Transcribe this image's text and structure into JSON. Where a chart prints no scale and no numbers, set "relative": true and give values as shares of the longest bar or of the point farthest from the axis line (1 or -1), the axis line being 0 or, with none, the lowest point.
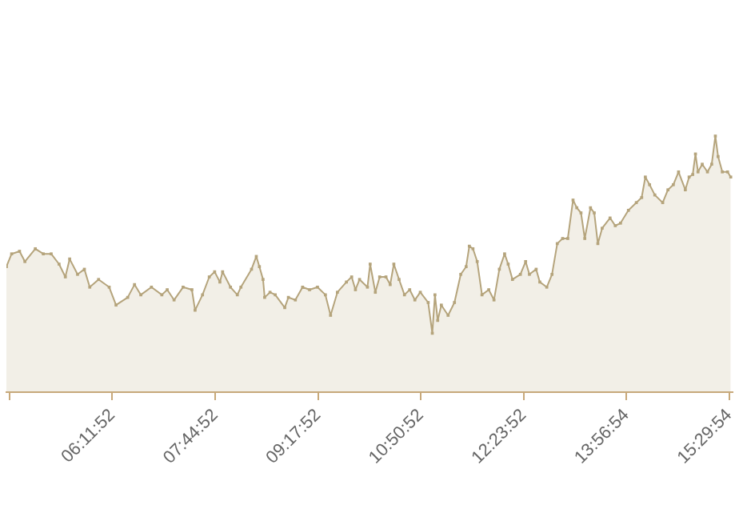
{
  "chart_data": {
    "type": "area",
    "relative": true,
    "color": "#b5a47c",
    "marker": "square",
    "legend": false,
    "tick_labels": "x",
    "xlim": [
      4.6,
      15.55
    ],
    "xticks": [
      {
        "value": 4.6478,
        "label": null
      },
      {
        "value": 6.1978,
        "label": "06:11:52"
      },
      {
        "value": 7.7478,
        "label": "07:44:52"
      },
      {
        "value": 9.2978,
        "label": "09:17:52"
      },
      {
        "value": 10.8478,
        "label": "10:50:52"
      },
      {
        "value": 12.3978,
        "label": "12:23:52"
      },
      {
        "value": 13.9483,
        "label": "13:56:54"
      },
      {
        "value": 15.4983,
        "label": "15:29:54"
      }
    ],
    "x": [
      4.6,
      4.679,
      4.798,
      4.879,
      5.036,
      5.156,
      5.275,
      5.394,
      5.489,
      5.554,
      5.673,
      5.776,
      5.857,
      5.99,
      6.15,
      6.253,
      6.429,
      6.532,
      6.627,
      6.787,
      6.944,
      7.025,
      7.128,
      7.264,
      7.397,
      7.445,
      7.557,
      7.659,
      7.74,
      7.819,
      7.86,
      7.979,
      8.082,
      8.136,
      8.296,
      8.368,
      8.415,
      8.47,
      8.494,
      8.575,
      8.654,
      8.797,
      8.852,
      8.957,
      9.066,
      9.171,
      9.291,
      9.41,
      9.488,
      9.591,
      9.727,
      9.806,
      9.863,
      9.925,
      10.044,
      10.085,
      10.163,
      10.228,
      10.323,
      10.387,
      10.442,
      10.521,
      10.602,
      10.681,
      10.759,
      10.841,
      10.96,
      11.022,
      11.062,
      11.103,
      11.158,
      11.26,
      11.356,
      11.451,
      11.532,
      11.58,
      11.635,
      11.699,
      11.771,
      11.873,
      11.952,
      12.033,
      12.112,
      12.166,
      12.231,
      12.35,
      12.429,
      12.486,
      12.588,
      12.643,
      12.748,
      12.827,
      12.906,
      12.987,
      13.065,
      13.144,
      13.201,
      13.264,
      13.321,
      13.407,
      13.464,
      13.518,
      13.583,
      13.702,
      13.781,
      13.86,
      13.979,
      14.098,
      14.179,
      14.234,
      14.298,
      14.377,
      14.496,
      14.575,
      14.656,
      14.735,
      14.837,
      14.894,
      14.949,
      14.99,
      15.028,
      15.092,
      15.171,
      15.235,
      15.29,
      15.331,
      15.395,
      15.474,
      15.522
    ],
    "values": [
      0.49,
      0.54,
      0.55,
      0.51,
      0.56,
      0.54,
      0.54,
      0.5,
      0.45,
      0.52,
      0.46,
      0.48,
      0.41,
      0.44,
      0.41,
      0.34,
      0.37,
      0.42,
      0.38,
      0.41,
      0.38,
      0.4,
      0.36,
      0.41,
      0.4,
      0.32,
      0.38,
      0.45,
      0.47,
      0.43,
      0.47,
      0.41,
      0.38,
      0.41,
      0.48,
      0.53,
      0.49,
      0.44,
      0.37,
      0.39,
      0.38,
      0.33,
      0.37,
      0.36,
      0.41,
      0.4,
      0.41,
      0.38,
      0.3,
      0.39,
      0.43,
      0.45,
      0.4,
      0.44,
      0.41,
      0.5,
      0.39,
      0.45,
      0.45,
      0.42,
      0.5,
      0.44,
      0.38,
      0.4,
      0.36,
      0.39,
      0.35,
      0.23,
      0.38,
      0.28,
      0.34,
      0.3,
      0.35,
      0.46,
      0.49,
      0.57,
      0.56,
      0.51,
      0.38,
      0.4,
      0.36,
      0.48,
      0.54,
      0.5,
      0.44,
      0.46,
      0.51,
      0.46,
      0.48,
      0.43,
      0.41,
      0.46,
      0.58,
      0.6,
      0.6,
      0.75,
      0.72,
      0.7,
      0.6,
      0.72,
      0.7,
      0.58,
      0.64,
      0.68,
      0.65,
      0.66,
      0.71,
      0.74,
      0.76,
      0.84,
      0.81,
      0.77,
      0.74,
      0.79,
      0.81,
      0.86,
      0.79,
      0.84,
      0.85,
      0.93,
      0.86,
      0.89,
      0.86,
      0.89,
      1,
      0.92,
      0.86,
      0.86,
      0.84
    ]
  }
}
